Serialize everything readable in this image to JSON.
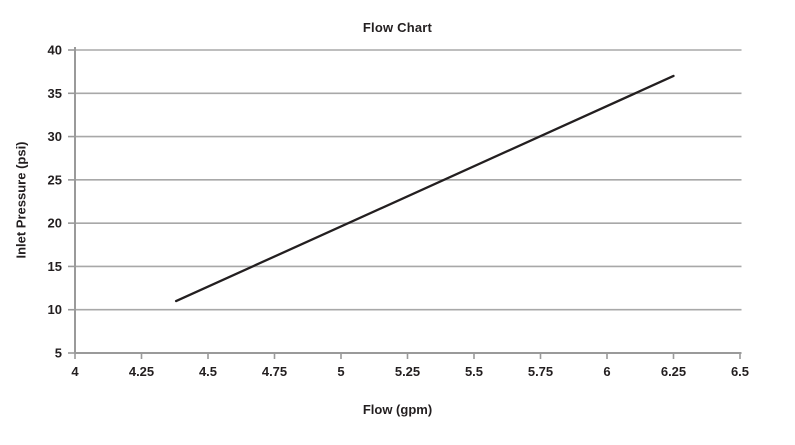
{
  "chart_data": {
    "type": "line",
    "title": "Flow Chart",
    "xlabel": "Flow (gpm)",
    "ylabel": "Inlet Pressure (psi)",
    "xlim": [
      4,
      6.5
    ],
    "ylim": [
      5,
      40
    ],
    "xticks": [
      "4",
      "4.25",
      "4.5",
      "4.75",
      "5",
      "5.25",
      "5.5",
      "5.75",
      "6",
      "6.25",
      "6.5"
    ],
    "yticks": [
      "5",
      "10",
      "15",
      "20",
      "25",
      "30",
      "35",
      "40"
    ],
    "grid": "horizontal-only",
    "legend": "none",
    "series": [
      {
        "name": "Inlet Pressure",
        "points": [
          [
            4.38,
            11
          ],
          [
            6.25,
            37
          ]
        ]
      }
    ],
    "colors": {
      "line": "#231f20",
      "gridline": "#a8a8a8",
      "axis": "#9a9a9a",
      "text": "#231f20",
      "background": "#ffffff"
    }
  }
}
